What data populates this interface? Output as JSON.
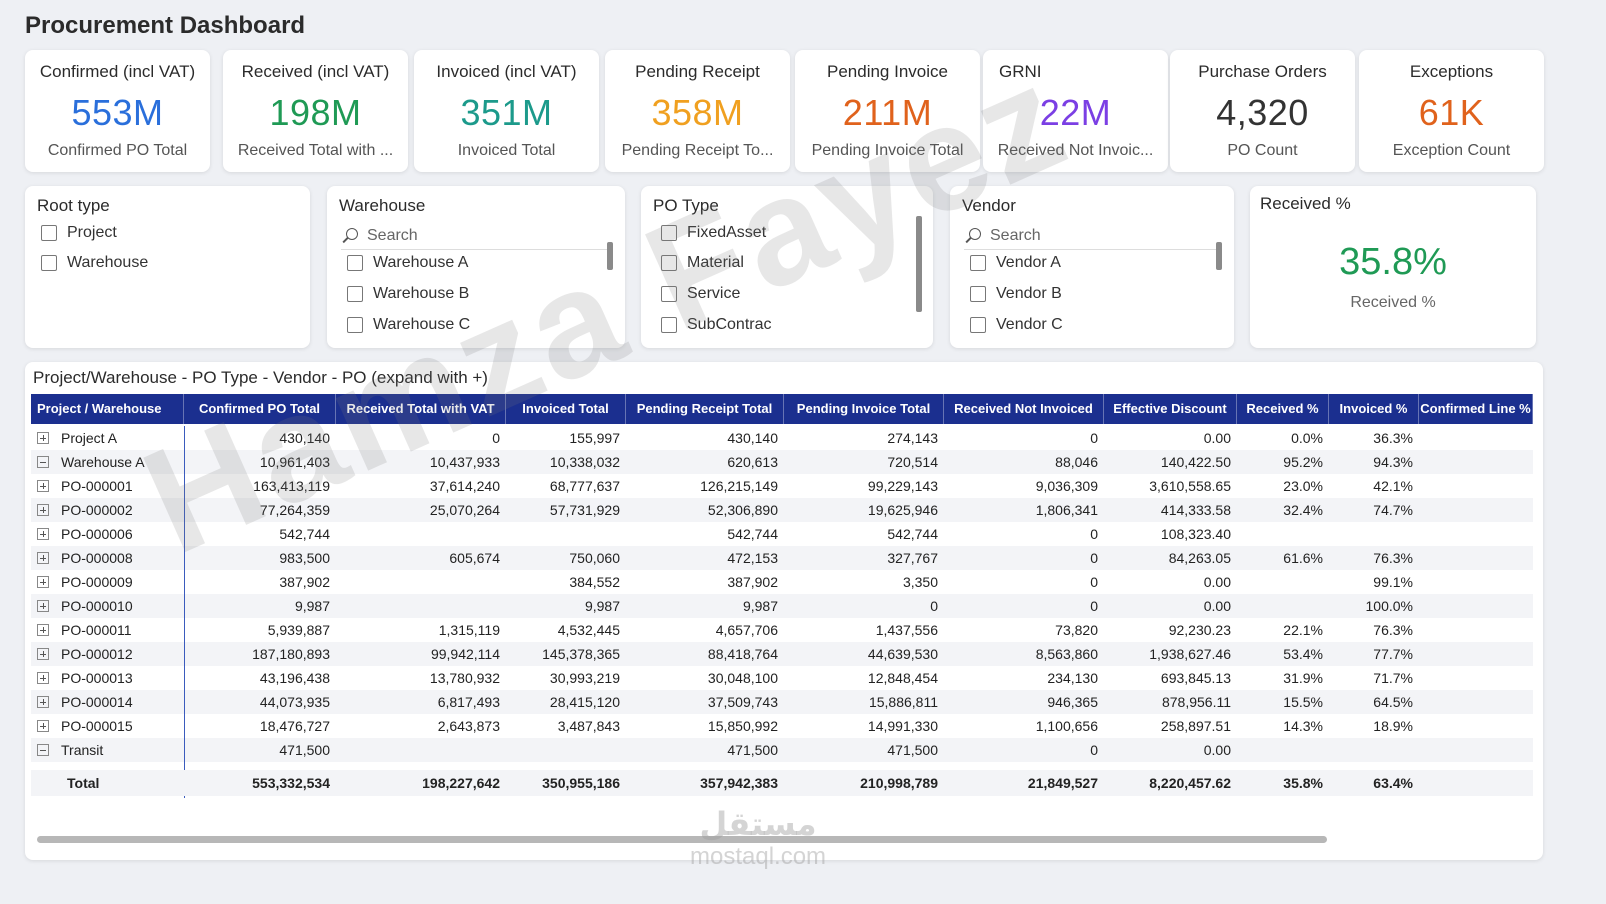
{
  "title": "Procurement Dashboard",
  "kpis": [
    {
      "title": "Confirmed (incl VAT)",
      "value": "553M",
      "sub": "Confirmed PO Total",
      "color": "#2a6fdb"
    },
    {
      "title": "Received (incl VAT)",
      "value": "198M",
      "sub": "Received Total with ...",
      "color": "#1f9a55"
    },
    {
      "title": "Invoiced (incl VAT)",
      "value": "351M",
      "sub": "Invoiced Total",
      "color": "#1c9a8b"
    },
    {
      "title": "Pending Receipt",
      "value": "358M",
      "sub": "Pending Receipt To...",
      "color": "#f0a020"
    },
    {
      "title": "Pending Invoice",
      "value": "211M",
      "sub": "Pending Invoice Total",
      "color": "#e0621c"
    },
    {
      "title": "GRNI",
      "value": "22M",
      "sub": "Received Not Invoic...",
      "color": "#7b3fe4"
    },
    {
      "title": "Purchase Orders",
      "value": "4,320",
      "sub": "PO Count",
      "color": "#333333"
    },
    {
      "title": "Exceptions",
      "value": "61K",
      "sub": "Exception Count",
      "color": "#e0621c"
    }
  ],
  "slicers": {
    "root_type": {
      "title": "Root type",
      "items": [
        "Project",
        "Warehouse"
      ]
    },
    "warehouse": {
      "title": "Warehouse",
      "search": "Search",
      "items": [
        "Warehouse A",
        "Warehouse B",
        "Warehouse C"
      ]
    },
    "po_type": {
      "title": "PO Type",
      "items": [
        "FixedAsset",
        "Material",
        "Service",
        "SubContrac"
      ]
    },
    "vendor": {
      "title": "Vendor",
      "search": "Search",
      "items": [
        "Vendor A",
        "Vendor B",
        "Vendor C"
      ]
    }
  },
  "received_card": {
    "title": "Received %",
    "value": "35.8%",
    "sub": "Received %",
    "color": "#1f9a55"
  },
  "matrix": {
    "title": "Project/Warehouse - PO Type - Vendor - PO (expand with +)",
    "columns": [
      "Project / Warehouse",
      "Confirmed PO Total",
      "Received Total with VAT",
      "Invoiced Total",
      "Pending Receipt Total",
      "Pending Invoice Total",
      "Received Not Invoiced",
      "Effective Discount",
      "Received %",
      "Invoiced %",
      "Confirmed Line %"
    ],
    "rows": [
      {
        "expand": "plus",
        "name": "Project A",
        "cells": [
          "430,140",
          "0",
          "155,997",
          "430,140",
          "274,143",
          "0",
          "0.00",
          "0.0%",
          "36.3%",
          ""
        ]
      },
      {
        "expand": "minus",
        "name": "Warehouse A",
        "cells": [
          "10,961,403",
          "10,437,933",
          "10,338,032",
          "620,613",
          "720,514",
          "88,046",
          "140,422.50",
          "95.2%",
          "94.3%",
          ""
        ]
      },
      {
        "expand": "plus",
        "name": "PO-000001",
        "cells": [
          "163,413,119",
          "37,614,240",
          "68,777,637",
          "126,215,149",
          "99,229,143",
          "9,036,309",
          "3,610,558.65",
          "23.0%",
          "42.1%",
          ""
        ]
      },
      {
        "expand": "plus",
        "name": "PO-000002",
        "cells": [
          "77,264,359",
          "25,070,264",
          "57,731,929",
          "52,306,890",
          "19,625,946",
          "1,806,341",
          "414,333.58",
          "32.4%",
          "74.7%",
          ""
        ]
      },
      {
        "expand": "plus",
        "name": "PO-000006",
        "cells": [
          "542,744",
          "",
          "",
          "542,744",
          "542,744",
          "0",
          "108,323.40",
          "",
          "",
          ""
        ]
      },
      {
        "expand": "plus",
        "name": "PO-000008",
        "cells": [
          "983,500",
          "605,674",
          "750,060",
          "472,153",
          "327,767",
          "0",
          "84,263.05",
          "61.6%",
          "76.3%",
          ""
        ]
      },
      {
        "expand": "plus",
        "name": "PO-000009",
        "cells": [
          "387,902",
          "",
          "384,552",
          "387,902",
          "3,350",
          "0",
          "0.00",
          "",
          "99.1%",
          ""
        ]
      },
      {
        "expand": "plus",
        "name": "PO-000010",
        "cells": [
          "9,987",
          "",
          "9,987",
          "9,987",
          "0",
          "0",
          "0.00",
          "",
          "100.0%",
          ""
        ]
      },
      {
        "expand": "plus",
        "name": "PO-000011",
        "cells": [
          "5,939,887",
          "1,315,119",
          "4,532,445",
          "4,657,706",
          "1,437,556",
          "73,820",
          "92,230.23",
          "22.1%",
          "76.3%",
          ""
        ]
      },
      {
        "expand": "plus",
        "name": "PO-000012",
        "cells": [
          "187,180,893",
          "99,942,114",
          "145,378,365",
          "88,418,764",
          "44,639,530",
          "8,563,860",
          "1,938,627.46",
          "53.4%",
          "77.7%",
          ""
        ]
      },
      {
        "expand": "plus",
        "name": "PO-000013",
        "cells": [
          "43,196,438",
          "13,780,932",
          "30,993,219",
          "30,048,100",
          "12,848,454",
          "234,130",
          "693,845.13",
          "31.9%",
          "71.7%",
          ""
        ]
      },
      {
        "expand": "plus",
        "name": "PO-000014",
        "cells": [
          "44,073,935",
          "6,817,493",
          "28,415,120",
          "37,509,743",
          "15,886,811",
          "946,365",
          "878,956.11",
          "15.5%",
          "64.5%",
          ""
        ]
      },
      {
        "expand": "plus",
        "name": "PO-000015",
        "cells": [
          "18,476,727",
          "2,643,873",
          "3,487,843",
          "15,850,992",
          "14,991,330",
          "1,100,656",
          "258,897.51",
          "14.3%",
          "18.9%",
          ""
        ]
      },
      {
        "expand": "minus",
        "name": "Transit",
        "cells": [
          "471,500",
          "",
          "",
          "471,500",
          "471,500",
          "0",
          "0.00",
          "",
          "",
          ""
        ]
      }
    ],
    "total": {
      "name": "Total",
      "cells": [
        "553,332,534",
        "198,227,642",
        "350,955,186",
        "357,942,383",
        "210,998,789",
        "21,849,527",
        "8,220,457.62",
        "35.8%",
        "63.4%",
        ""
      ]
    }
  },
  "watermark": {
    "text": "Hamza Fayez",
    "logo_ar": "مستقل",
    "logo_en": "mostaql.com"
  },
  "colors": {
    "header_bg": "#1b2f8f",
    "page_bg": "#eef0f4"
  }
}
